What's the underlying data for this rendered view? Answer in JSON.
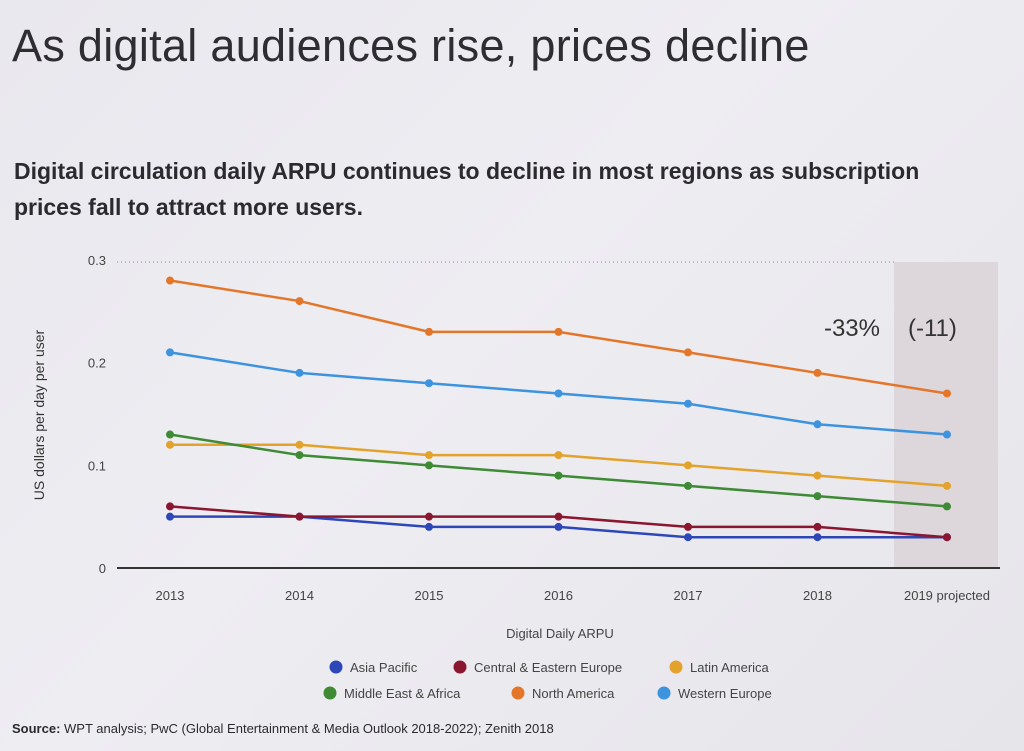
{
  "page": {
    "title": "As digital audiences rise, prices decline",
    "subtitle": "Digital circulation daily ARPU continues to decline in most regions as subscription prices fall to attract more users.",
    "source_label": "Source:",
    "source_text": "WPT analysis; PwC (Global Entertainment & Media Outlook 2018-2022); Zenith 2018"
  },
  "chart_data": {
    "type": "line",
    "title": "",
    "xlabel": "Digital Daily ARPU",
    "ylabel": "US dollars per day per user",
    "ylim": [
      0,
      0.3
    ],
    "yticks": [
      0,
      0.1,
      0.2,
      0.3
    ],
    "ytick_labels": [
      "0",
      "0.1",
      "0.2",
      "0.3"
    ],
    "grid": false,
    "legend_position": "bottom",
    "categories": [
      "2013",
      "2014",
      "2015",
      "2016",
      "2017",
      "2018",
      "2019 projected"
    ],
    "projected_category": "2019 projected",
    "annotation": "-33%",
    "annotation2": "(-11)",
    "series": [
      {
        "name": "Asia Pacific",
        "color": "#2e47b8",
        "values": [
          0.05,
          0.05,
          0.04,
          0.04,
          0.03,
          0.03,
          0.03
        ]
      },
      {
        "name": "Central & Eastern Europe",
        "color": "#8a1630",
        "values": [
          0.06,
          0.05,
          0.05,
          0.05,
          0.04,
          0.04,
          0.03
        ]
      },
      {
        "name": "Latin America",
        "color": "#e3a22c",
        "values": [
          0.12,
          0.12,
          0.11,
          0.11,
          0.1,
          0.09,
          0.08
        ]
      },
      {
        "name": "Middle East & Africa",
        "color": "#3e8a35",
        "values": [
          0.13,
          0.11,
          0.1,
          0.09,
          0.08,
          0.07,
          0.06
        ]
      },
      {
        "name": "North America",
        "color": "#e4762a",
        "values": [
          0.28,
          0.26,
          0.23,
          0.23,
          0.21,
          0.19,
          0.17
        ]
      },
      {
        "name": "Western Europe",
        "color": "#3d93de",
        "values": [
          0.21,
          0.19,
          0.18,
          0.17,
          0.16,
          0.14,
          0.13
        ]
      }
    ]
  }
}
